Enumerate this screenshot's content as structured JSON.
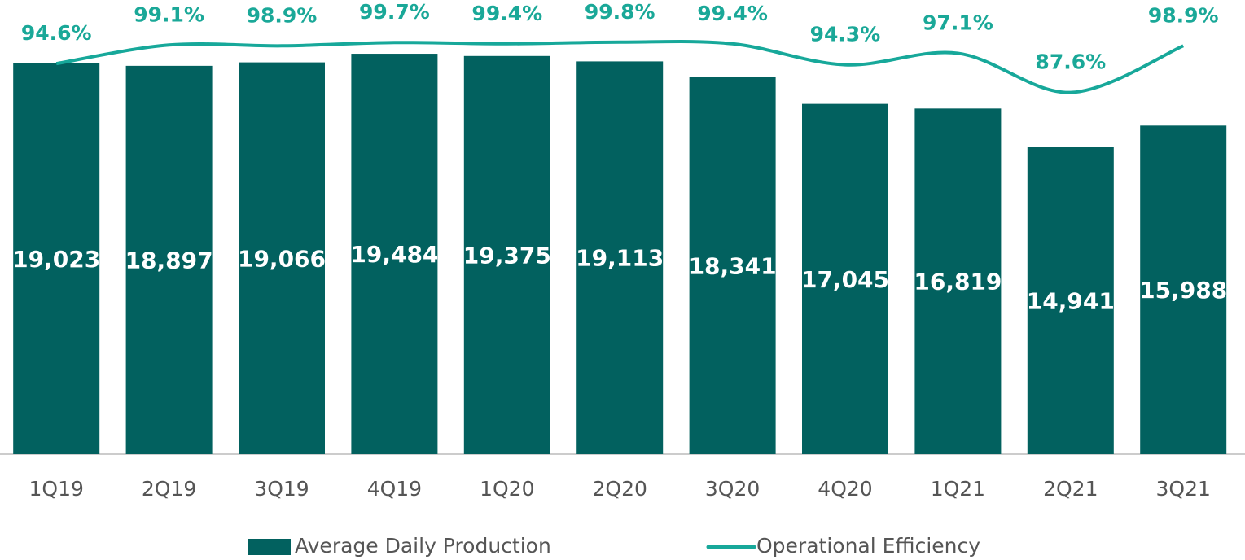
{
  "chart_data": {
    "type": "bar-line",
    "categories": [
      "1Q19",
      "2Q19",
      "3Q19",
      "4Q19",
      "1Q20",
      "2Q20",
      "3Q20",
      "4Q20",
      "1Q21",
      "2Q21",
      "3Q21"
    ],
    "series": [
      {
        "name": "Average Daily Production",
        "color": "#02615f",
        "type": "bar",
        "values": [
          19023,
          18897,
          19066,
          19484,
          19375,
          19113,
          18341,
          17045,
          16819,
          14941,
          15988
        ],
        "value_labels": [
          "19,023",
          "18,897",
          "19,066",
          "19,484",
          "19,375",
          "19,113",
          "18,341",
          "17,045",
          "16,819",
          "14,941",
          "15,988"
        ]
      },
      {
        "name": "Operational Efficiency",
        "color": "#17a89a",
        "type": "line",
        "axis": "y2",
        "values": [
          94.6,
          99.1,
          98.9,
          99.7,
          99.4,
          99.8,
          99.4,
          94.3,
          97.1,
          87.6,
          98.9
        ],
        "value_labels": [
          "94.6%",
          "99.1%",
          "98.9%",
          "99.7%",
          "99.4%",
          "99.8%",
          "99.4%",
          "94.3%",
          "97.1%",
          "87.6%",
          "98.9%"
        ]
      }
    ],
    "ylim": [
      0,
      22100
    ],
    "y2lim": [
      0,
      110
    ],
    "legend": "bottom"
  }
}
